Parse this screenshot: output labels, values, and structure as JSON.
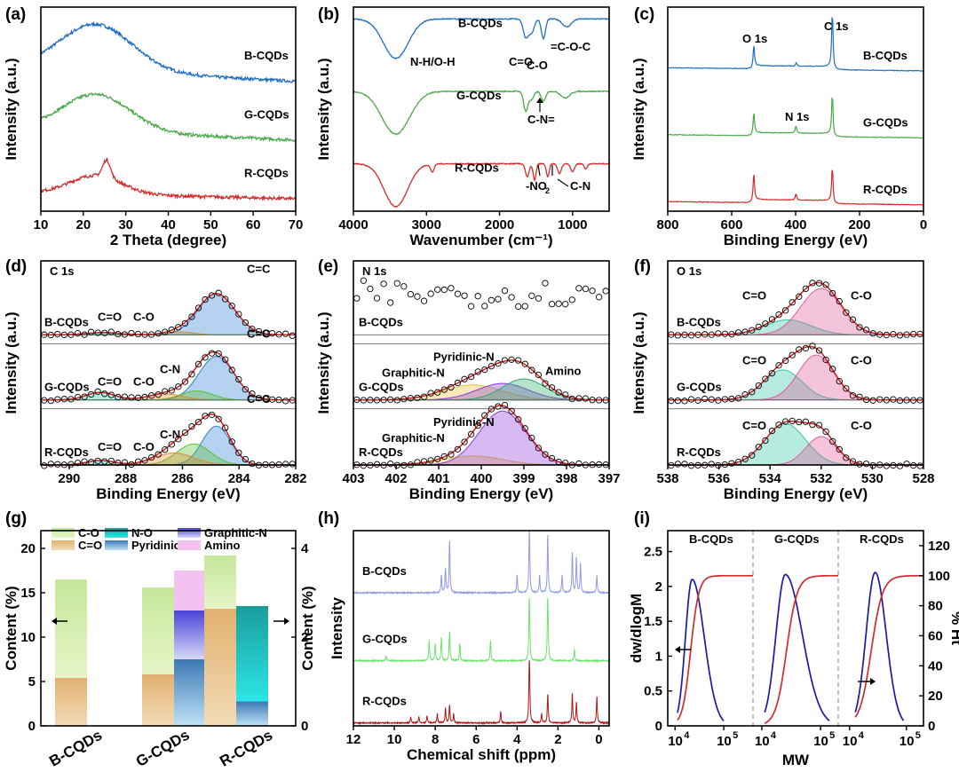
{
  "colors": {
    "blue": "#1f6fc0",
    "green": "#4aa84a",
    "red": "#d62a2a",
    "gray": "#888888",
    "navy": "#1a1aa6",
    "darkred": "#b11414",
    "hnmr_blue": "#8f9ae6",
    "hnmr_green": "#6de36d"
  },
  "figure": {
    "panels": [
      {
        "id": "a",
        "label": "(a)"
      },
      {
        "id": "b",
        "label": "(b)"
      },
      {
        "id": "c",
        "label": "(c)"
      },
      {
        "id": "d",
        "label": "(d)"
      },
      {
        "id": "e",
        "label": "(e)"
      },
      {
        "id": "f",
        "label": "(f)"
      },
      {
        "id": "g",
        "label": "(g)"
      },
      {
        "id": "h",
        "label": "(h)"
      },
      {
        "id": "i",
        "label": "(i)"
      }
    ]
  },
  "chart_data": [
    {
      "id": "a",
      "type": "line",
      "xlabel": "2 Theta (degree)",
      "ylabel": "Intensity (a.u.)",
      "xlim": [
        10,
        70
      ],
      "xticks": [
        10,
        20,
        30,
        40,
        50,
        60,
        70
      ],
      "series": [
        {
          "name": "B-CQDs",
          "color": "blue",
          "offset": 2.1,
          "peaks": [
            [
              23,
              0.75,
              8.5
            ]
          ],
          "base": 0.22
        },
        {
          "name": "G-CQDs",
          "color": "green",
          "offset": 1.15,
          "peaks": [
            [
              23,
              0.6,
              8
            ]
          ],
          "base": 0.18
        },
        {
          "name": "R-CQDs",
          "color": "red",
          "offset": 0.2,
          "peaks": [
            [
              23,
              0.3,
              6
            ],
            [
              25.5,
              0.28,
              0.9
            ]
          ],
          "base": 0.1
        }
      ]
    },
    {
      "id": "b",
      "type": "line",
      "xlabel": "Wavenumber (cm⁻¹)",
      "ylabel": "Intensity (a.u.)",
      "xlim": [
        4000,
        500
      ],
      "xticks": [
        4000,
        3000,
        2000,
        1000
      ],
      "series": [
        {
          "name": "B-CQDs",
          "color": "blue",
          "offset": 2.3,
          "dips": [
            [
              3420,
              0.6,
              170
            ],
            [
              1640,
              0.28,
              35
            ],
            [
              1560,
              0.2,
              35
            ],
            [
              1400,
              0.3,
              28
            ],
            [
              1080,
              0.12,
              60
            ]
          ]
        },
        {
          "name": "G-CQDs",
          "color": "green",
          "offset": 1.2,
          "dips": [
            [
              3420,
              0.65,
              190
            ],
            [
              1640,
              0.3,
              30
            ],
            [
              1560,
              0.12,
              30
            ],
            [
              1400,
              0.15,
              30
            ],
            [
              1100,
              0.1,
              60
            ]
          ]
        },
        {
          "name": "R-CQDs",
          "color": "red",
          "offset": 0.1,
          "dips": [
            [
              3420,
              0.65,
              160
            ],
            [
              2920,
              0.12,
              25
            ],
            [
              1620,
              0.2,
              25
            ],
            [
              1520,
              0.25,
              20
            ],
            [
              1340,
              0.2,
              20
            ],
            [
              1180,
              0.15,
              25
            ],
            [
              1000,
              0.12,
              25
            ],
            [
              820,
              0.08,
              20
            ]
          ]
        }
      ],
      "annotations": [
        "N-H/O-H",
        "C=O",
        "C-O",
        "=C-O-C",
        "C-N=",
        "-NO",
        "2",
        "C-N"
      ]
    },
    {
      "id": "c",
      "type": "line",
      "xlabel": "Binding Energy (eV)",
      "ylabel": "Intensity (a.u.)",
      "xlim": [
        800,
        0
      ],
      "xticks": [
        800,
        600,
        400,
        200,
        0
      ],
      "series": [
        {
          "name": "B-CQDs",
          "color": "blue",
          "offset": 2.2,
          "peaks": [
            [
              531,
              0.35
            ],
            [
              398,
              0.05
            ],
            [
              285,
              0.9
            ]
          ]
        },
        {
          "name": "G-CQDs",
          "color": "green",
          "offset": 1.15,
          "peaks": [
            [
              531,
              0.35
            ],
            [
              399,
              0.12
            ],
            [
              285,
              0.65
            ]
          ]
        },
        {
          "name": "R-CQDs",
          "color": "red",
          "offset": 0.1,
          "peaks": [
            [
              531,
              0.45
            ],
            [
              399,
              0.1
            ],
            [
              285,
              0.55
            ]
          ]
        }
      ],
      "annotations": [
        "O 1s",
        "C 1s",
        "N 1s"
      ]
    },
    {
      "id": "d",
      "type": "line",
      "title": "C 1s",
      "xlabel": "Binding Energy (eV)",
      "ylabel": "Intensity (a.u.)",
      "xlim": [
        291,
        282
      ],
      "xticks": [
        290,
        288,
        286,
        284,
        282
      ],
      "samples": [
        {
          "name": "B-CQDs",
          "components": [
            {
              "label": "C=C",
              "center": 284.8,
              "height": 0.55,
              "width": 0.65
            },
            {
              "label": "C-O",
              "center": 286.1,
              "height": 0.04,
              "width": 0.5
            },
            {
              "label": "C=O",
              "center": 288.8,
              "height": 0.03,
              "width": 0.6
            }
          ]
        },
        {
          "name": "G-CQDs",
          "components": [
            {
              "label": "C=C",
              "center": 284.8,
              "height": 0.58,
              "width": 0.62
            },
            {
              "label": "C-N",
              "center": 285.5,
              "height": 0.12,
              "width": 0.55
            },
            {
              "label": "C-O",
              "center": 286.6,
              "height": 0.08,
              "width": 0.6
            },
            {
              "label": "C=O",
              "center": 288.9,
              "height": 0.1,
              "width": 0.5
            }
          ]
        },
        {
          "name": "R-CQDs",
          "components": [
            {
              "label": "C=C",
              "center": 284.8,
              "height": 0.52,
              "width": 0.5
            },
            {
              "label": "C-N",
              "center": 285.6,
              "height": 0.28,
              "width": 0.6
            },
            {
              "label": "C-O",
              "center": 286.3,
              "height": 0.16,
              "width": 0.7
            },
            {
              "label": "C=O",
              "center": 288.9,
              "height": 0.06,
              "width": 0.5
            }
          ]
        }
      ]
    },
    {
      "id": "e",
      "type": "line",
      "title": "N 1s",
      "xlabel": "Binding Energy (eV)",
      "ylabel": "Intensity (a.u.)",
      "xlim": [
        403,
        397
      ],
      "xticks": [
        403,
        402,
        401,
        400,
        399,
        398,
        397
      ],
      "samples": [
        {
          "name": "B-CQDs",
          "components": []
        },
        {
          "name": "G-CQDs",
          "components": [
            {
              "label": "Graphitic-N",
              "center": 400.2,
              "height": 0.2,
              "width": 0.7
            },
            {
              "label": "Pyridinic-N",
              "center": 399.5,
              "height": 0.22,
              "width": 0.6
            },
            {
              "label": "Amino",
              "center": 399.0,
              "height": 0.28,
              "width": 0.5
            }
          ]
        },
        {
          "name": "R-CQDs",
          "components": [
            {
              "label": "Graphitic-N",
              "center": 400.2,
              "height": 0.12,
              "width": 0.7
            },
            {
              "label": "Pyridinic-N",
              "center": 399.5,
              "height": 0.72,
              "width": 0.55
            }
          ]
        }
      ]
    },
    {
      "id": "f",
      "type": "line",
      "title": "O 1s",
      "xlabel": "Binding Energy (eV)",
      "ylabel": "Intensity (a.u.)",
      "xlim": [
        538,
        528
      ],
      "xticks": [
        538,
        536,
        534,
        532,
        530,
        528
      ],
      "samples": [
        {
          "name": "B-CQDs",
          "components": [
            {
              "label": "C=O",
              "center": 533.3,
              "height": 0.2,
              "width": 0.9
            },
            {
              "label": "C-O",
              "center": 532.0,
              "height": 0.62,
              "width": 0.8
            }
          ]
        },
        {
          "name": "G-CQDs",
          "components": [
            {
              "label": "C=O",
              "center": 533.5,
              "height": 0.4,
              "width": 0.75
            },
            {
              "label": "C-O",
              "center": 532.2,
              "height": 0.6,
              "width": 0.7
            }
          ]
        },
        {
          "name": "R-CQDs",
          "components": [
            {
              "label": "C=O",
              "center": 533.4,
              "height": 0.55,
              "width": 0.8
            },
            {
              "label": "C-O",
              "center": 532.0,
              "height": 0.38,
              "width": 0.6
            }
          ]
        }
      ]
    },
    {
      "id": "g",
      "type": "bar",
      "categories": [
        "B-CQDs",
        "G-CQDs",
        "R-CQDs"
      ],
      "ylabel": "Content (%)",
      "ylabel_right": "Content (%)",
      "ylim": [
        0,
        22
      ],
      "yticks": [
        0,
        5,
        10,
        15,
        20
      ],
      "ylim_right": [
        0,
        4.4
      ],
      "yticks_right": [
        0,
        2,
        4
      ],
      "left_stack": [
        {
          "name": "C=O",
          "values": [
            5.4,
            5.8,
            13.2
          ]
        },
        {
          "name": "C-O",
          "values": [
            11.1,
            9.8,
            6.0
          ]
        }
      ],
      "right_stack": [
        {
          "name": "Pyridinic-N",
          "values": [
            0,
            1.5,
            0.55
          ]
        },
        {
          "name": "Graphitic-N",
          "values": [
            0,
            1.1,
            0
          ]
        },
        {
          "name": "Amino",
          "values": [
            0,
            0.9,
            0
          ]
        },
        {
          "name": "N-O",
          "values": [
            0,
            0,
            2.15
          ]
        }
      ],
      "legend": [
        "C-O",
        "C=O",
        "N-O",
        "Pyridinic-N",
        "Graphitic-N",
        "Amino"
      ]
    },
    {
      "id": "h",
      "type": "line",
      "xlabel": "Chemical shift (ppm)",
      "ylabel": "Intensity",
      "xlim": [
        12,
        -0.5
      ],
      "xticks": [
        12,
        10,
        8,
        6,
        4,
        2,
        0
      ],
      "series": [
        {
          "name": "B-CQDs",
          "color": "hnmr_blue",
          "offset": 2.25,
          "peaks": [
            [
              7.3,
              0.9
            ],
            [
              7.5,
              0.4
            ],
            [
              7.7,
              0.3
            ],
            [
              3.4,
              1.2
            ],
            [
              2.5,
              1.0
            ],
            [
              1.3,
              0.7
            ],
            [
              1.1,
              0.6
            ],
            [
              0.9,
              0.5
            ],
            [
              0.1,
              0.3
            ],
            [
              4.0,
              0.3
            ],
            [
              2.9,
              0.3
            ],
            [
              1.8,
              0.3
            ]
          ]
        },
        {
          "name": "G-CQDs",
          "color": "hnmr_green",
          "offset": 1.1,
          "peaks": [
            [
              8.3,
              0.35
            ],
            [
              8.0,
              0.3
            ],
            [
              7.7,
              0.4
            ],
            [
              7.3,
              0.5
            ],
            [
              6.8,
              0.3
            ],
            [
              5.3,
              0.35
            ],
            [
              3.4,
              1.2
            ],
            [
              2.5,
              1.2
            ],
            [
              1.2,
              0.2
            ],
            [
              10.4,
              0.08
            ]
          ]
        },
        {
          "name": "R-CQDs",
          "color": "darkred",
          "offset": 0.05,
          "peaks": [
            [
              9.2,
              0.1
            ],
            [
              8.8,
              0.1
            ],
            [
              8.4,
              0.12
            ],
            [
              7.9,
              0.15
            ],
            [
              7.5,
              0.25
            ],
            [
              7.3,
              0.3
            ],
            [
              7.1,
              0.15
            ],
            [
              4.8,
              0.2
            ],
            [
              3.4,
              1.3
            ],
            [
              2.5,
              0.5
            ],
            [
              2.8,
              0.15
            ],
            [
              1.3,
              0.5
            ],
            [
              1.1,
              0.35
            ],
            [
              0.1,
              0.45
            ]
          ]
        }
      ]
    },
    {
      "id": "i",
      "type": "line",
      "xlabel": "MW",
      "ylabel": "dw/dlogM",
      "ylabel_right": "% Ht",
      "ylim": [
        0,
        2.8
      ],
      "yticks": [
        0.0,
        0.5,
        1.0,
        1.5,
        2.0,
        2.5
      ],
      "ylim_right": [
        0,
        130
      ],
      "yticks_right": [
        0,
        20,
        40,
        60,
        80,
        100,
        120
      ],
      "xticks_log": [
        4,
        5
      ],
      "subplots": [
        {
          "name": "B-CQDs",
          "xrange_log": [
            3.85,
            5.6
          ],
          "dist": {
            "start": 4.05,
            "peak": 4.35,
            "peak_value": 2.1,
            "end": 5.0
          },
          "cumulative": {
            "mid": 4.32,
            "k": 12
          }
        },
        {
          "name": "G-CQDs",
          "xrange_log": [
            3.85,
            5.3
          ],
          "dist": {
            "start": 4.05,
            "peak": 4.4,
            "peak_value": 2.17,
            "end": 5.15
          },
          "cumulative": {
            "mid": 4.42,
            "k": 11
          }
        },
        {
          "name": "R-CQDs",
          "xrange_log": [
            3.8,
            5.3
          ],
          "dist": {
            "start": 4.1,
            "peak": 4.45,
            "peak_value": 2.2,
            "end": 4.95
          },
          "cumulative": {
            "mid": 4.38,
            "k": 10
          }
        }
      ]
    }
  ]
}
